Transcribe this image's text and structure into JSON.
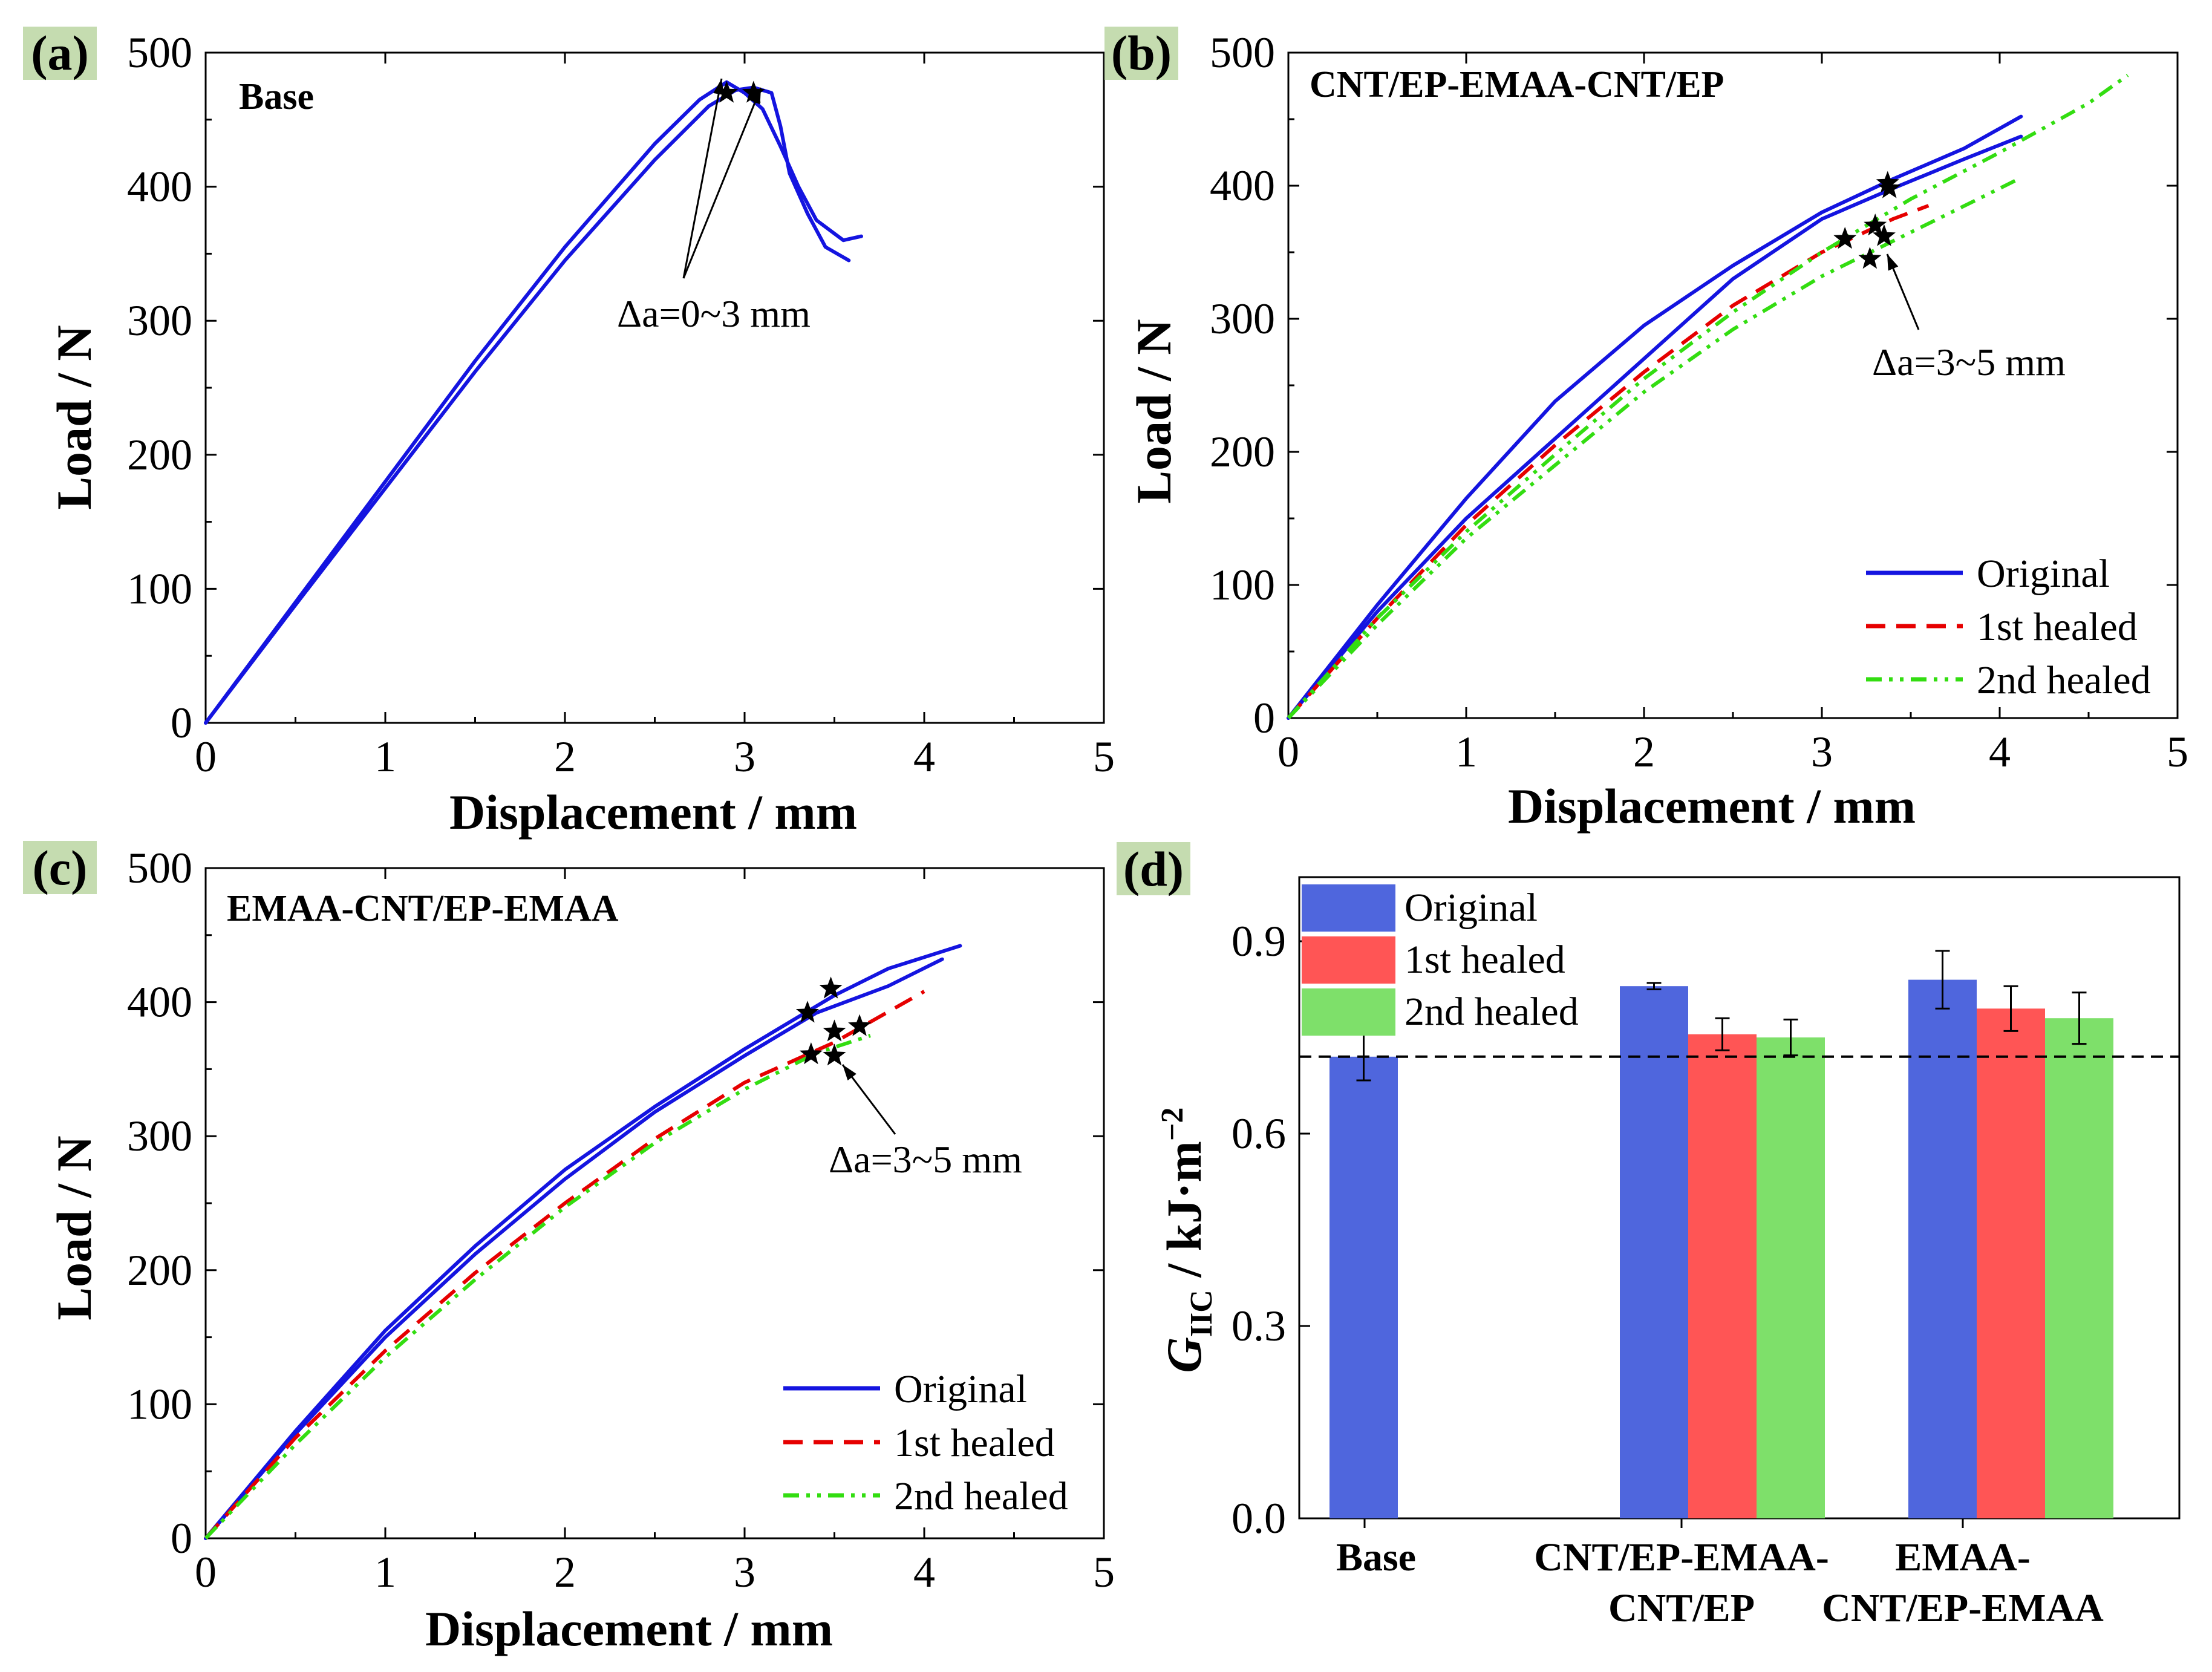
{
  "colors": {
    "original": "#1414e0",
    "healed1": "#e60000",
    "healed2": "#33dd11",
    "bar_original": "#4f66dd",
    "bar_healed1": "#ff5555",
    "bar_healed2": "#7ee06a",
    "label_bg": "#c5dcb0"
  },
  "legend": [
    "Original",
    "1st healed",
    "2nd healed"
  ],
  "chart_data": [
    {
      "type": "line",
      "panel": "(a)",
      "title": "Base",
      "xlabel": "Displacement / mm",
      "ylabel": "Load / N",
      "xlim": [
        0,
        5
      ],
      "ylim": [
        0,
        500
      ],
      "xticks": [
        "0",
        "1",
        "2",
        "3",
        "4",
        "5"
      ],
      "yticks": [
        "0",
        "100",
        "200",
        "300",
        "400",
        "500"
      ],
      "series": [
        {
          "name": "Original",
          "style": "solid",
          "x": [
            0,
            0.5,
            1.0,
            1.5,
            2.0,
            2.5,
            2.75,
            2.9,
            3.0,
            3.1,
            3.2,
            3.3,
            3.4,
            3.55,
            3.65
          ],
          "y": [
            0,
            90,
            180,
            270,
            355,
            432,
            465,
            478,
            470,
            458,
            430,
            400,
            375,
            360,
            363
          ]
        },
        {
          "name": "Original",
          "style": "solid",
          "x": [
            0,
            0.5,
            1.0,
            1.5,
            2.0,
            2.5,
            2.8,
            2.95,
            3.05,
            3.15,
            3.2,
            3.25,
            3.35,
            3.45,
            3.58
          ],
          "y": [
            0,
            88,
            175,
            262,
            345,
            420,
            460,
            472,
            474,
            470,
            445,
            410,
            380,
            355,
            345
          ]
        }
      ],
      "markers": [
        {
          "x": 2.9,
          "y": 470
        },
        {
          "x": 3.05,
          "y": 470
        }
      ],
      "annotation": {
        "text": "Δa=0~3 mm",
        "x": 2.3,
        "y": 300
      }
    },
    {
      "type": "line",
      "panel": "(b)",
      "title": "CNT/EP-EMAA-CNT/EP",
      "xlabel": "Displacement / mm",
      "ylabel": "Load / N",
      "xlim": [
        0,
        5
      ],
      "ylim": [
        0,
        500
      ],
      "xticks": [
        "0",
        "1",
        "2",
        "3",
        "4",
        "5"
      ],
      "yticks": [
        "0",
        "100",
        "200",
        "300",
        "400",
        "500"
      ],
      "series": [
        {
          "name": "Original",
          "style": "solid",
          "x": [
            0,
            0.5,
            1.0,
            1.5,
            2.0,
            2.5,
            3.0,
            3.4,
            3.8,
            4.12
          ],
          "y": [
            0,
            85,
            165,
            238,
            295,
            340,
            380,
            405,
            428,
            452
          ]
        },
        {
          "name": "Original",
          "style": "solid",
          "x": [
            0,
            0.5,
            1.0,
            1.5,
            2.0,
            2.5,
            3.0,
            3.4,
            3.8,
            4.12
          ],
          "y": [
            0,
            80,
            150,
            210,
            270,
            330,
            375,
            398,
            420,
            437
          ]
        },
        {
          "name": "1st healed",
          "style": "dashed",
          "x": [
            0,
            0.5,
            1.0,
            1.5,
            2.0,
            2.5,
            3.0,
            3.4,
            3.6
          ],
          "y": [
            0,
            75,
            145,
            205,
            260,
            310,
            350,
            375,
            385
          ]
        },
        {
          "name": "2nd healed",
          "style": "dashdot",
          "x": [
            0,
            0.5,
            1.0,
            1.5,
            2.0,
            2.5,
            3.0,
            3.5,
            4.0,
            4.5,
            4.72
          ],
          "y": [
            0,
            75,
            140,
            198,
            255,
            305,
            350,
            390,
            425,
            462,
            483
          ]
        },
        {
          "name": "2nd healed",
          "style": "dashdot",
          "x": [
            0,
            0.5,
            1.0,
            1.5,
            2.0,
            2.5,
            3.0,
            3.5,
            4.0,
            4.12
          ],
          "y": [
            0,
            70,
            135,
            190,
            245,
            292,
            332,
            365,
            398,
            406
          ]
        }
      ],
      "markers": [
        {
          "x": 3.37,
          "y": 402
        },
        {
          "x": 3.38,
          "y": 398
        },
        {
          "x": 3.13,
          "y": 360
        },
        {
          "x": 3.3,
          "y": 370
        },
        {
          "x": 3.35,
          "y": 362
        },
        {
          "x": 3.27,
          "y": 345
        }
      ],
      "annotation": {
        "text": "Δa=3~5 mm",
        "x": 3.25,
        "y": 260
      }
    },
    {
      "type": "line",
      "panel": "(c)",
      "title": "EMAA-CNT/EP-EMAA",
      "xlabel": "Displacement / mm",
      "ylabel": "Load / N",
      "xlim": [
        0,
        5
      ],
      "ylim": [
        0,
        500
      ],
      "xticks": [
        "0",
        "1",
        "2",
        "3",
        "4",
        "5"
      ],
      "yticks": [
        "0",
        "100",
        "200",
        "300",
        "400",
        "500"
      ],
      "series": [
        {
          "name": "Original",
          "style": "solid",
          "x": [
            0,
            0.5,
            1.0,
            1.5,
            2.0,
            2.5,
            3.0,
            3.5,
            3.8,
            4.2
          ],
          "y": [
            0,
            80,
            155,
            218,
            275,
            322,
            365,
            405,
            425,
            442
          ]
        },
        {
          "name": "Original",
          "style": "solid",
          "x": [
            0,
            0.5,
            1.0,
            1.5,
            2.0,
            2.5,
            3.0,
            3.4,
            3.8,
            4.1
          ],
          "y": [
            0,
            78,
            150,
            212,
            268,
            318,
            360,
            392,
            412,
            432
          ]
        },
        {
          "name": "1st healed",
          "style": "dashed",
          "x": [
            0,
            0.5,
            1.0,
            1.5,
            2.0,
            2.5,
            3.0,
            3.5,
            4.0
          ],
          "y": [
            0,
            75,
            140,
            198,
            250,
            298,
            340,
            370,
            408
          ]
        },
        {
          "name": "2nd healed",
          "style": "dashdot",
          "x": [
            0,
            0.5,
            1.0,
            1.5,
            2.0,
            2.5,
            3.0,
            3.4,
            3.7
          ],
          "y": [
            0,
            70,
            135,
            193,
            247,
            295,
            335,
            362,
            375
          ]
        }
      ],
      "markers": [
        {
          "x": 3.35,
          "y": 392
        },
        {
          "x": 3.48,
          "y": 410
        },
        {
          "x": 3.5,
          "y": 378
        },
        {
          "x": 3.64,
          "y": 382
        },
        {
          "x": 3.37,
          "y": 361
        },
        {
          "x": 3.5,
          "y": 360
        }
      ],
      "annotation": {
        "text": "Δa=3~5 mm",
        "x": 3.45,
        "y": 280
      }
    },
    {
      "type": "bar",
      "panel": "(d)",
      "ylabel_main": "G",
      "ylabel_sub": "IIC",
      "ylabel_rest": " / kJ·m",
      "ylabel_sup": "−2",
      "ylim": [
        0,
        1.0
      ],
      "yticks": [
        "0.0",
        "0.3",
        "0.6",
        "0.9"
      ],
      "ytick_values": [
        0,
        0.3,
        0.6,
        0.9
      ],
      "categories": [
        [
          "Base"
        ],
        [
          "CNT/EP-EMAA-",
          "CNT/EP"
        ],
        [
          "EMAA-",
          "CNT/EP-EMAA"
        ]
      ],
      "series": [
        {
          "name": "Original",
          "values": [
            0.72,
            0.83,
            0.84
          ],
          "errors": [
            0.037,
            0.005,
            0.045
          ]
        },
        {
          "name": "1st healed",
          "values": [
            null,
            0.755,
            0.795
          ],
          "errors": [
            null,
            0.025,
            0.035
          ]
        },
        {
          "name": "2nd healed",
          "values": [
            null,
            0.75,
            0.78
          ],
          "errors": [
            null,
            0.028,
            0.04
          ]
        }
      ],
      "reference_line": 0.72
    }
  ]
}
